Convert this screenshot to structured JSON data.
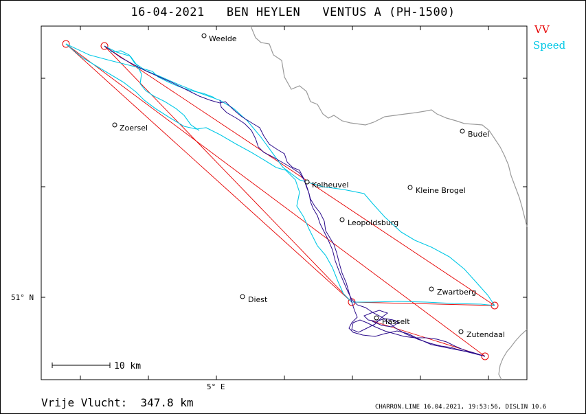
{
  "title": "16-04-2021   BEN HEYLEN   VENTUS A (PH-1500)",
  "legend": {
    "vv": "VV",
    "speed": "Speed",
    "vv_color": "#e60000",
    "speed_color": "#00c8e6",
    "track_color": "#2a0a8a"
  },
  "axes": {
    "lat_label": "51° N",
    "lon_label": "5° E"
  },
  "scale_bar": {
    "label": "10  km"
  },
  "places": [
    {
      "name": "Weelde"
    },
    {
      "name": "Zoersel"
    },
    {
      "name": "Budel"
    },
    {
      "name": "Kelheuvel"
    },
    {
      "name": "Kleine Brogel"
    },
    {
      "name": "Leopoldsburg"
    },
    {
      "name": "Zwartberg"
    },
    {
      "name": "Diest"
    },
    {
      "name": "Hasselt"
    },
    {
      "name": "Zutendaal"
    }
  ],
  "footer": {
    "distance": "Vrije Vlucht:  347.8 km",
    "software": "CHARRON.LINE 16.04.2021, 19:53:56, DISLIN 10.6"
  }
}
